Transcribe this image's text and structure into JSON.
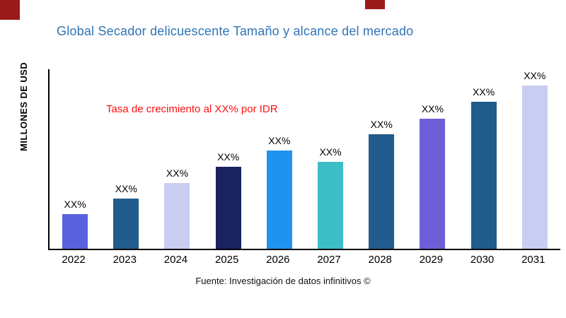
{
  "page": {
    "title_color": "#2E74B5",
    "annotation_color": "#FE1010",
    "decor_color": "#9B1B1B",
    "source": "Fuente: Investigación de datos infinitivos ©"
  },
  "chart_data": {
    "type": "bar",
    "title": "Global Secador delicuescente Tamaño y alcance del mercado",
    "xlabel": "",
    "ylabel": "MILLONES DE USD",
    "annotation": "Tasa de crecimiento al XX% por IDR",
    "categories": [
      "2022",
      "2023",
      "2024",
      "2025",
      "2026",
      "2027",
      "2028",
      "2029",
      "2030",
      "2031"
    ],
    "values": [
      49,
      71,
      93,
      116,
      140,
      123,
      163,
      185,
      209,
      232
    ],
    "value_labels": [
      "XX%",
      "XX%",
      "XX%",
      "XX%",
      "XX%",
      "XX%",
      "XX%",
      "XX%",
      "XX%",
      "XX%"
    ],
    "bar_colors": [
      "#5A61DE",
      "#215C8C",
      "#C9CDF2",
      "#1A2360",
      "#2093F0",
      "#3DBEC6",
      "#215C8C",
      "#6E5FD9",
      "#1F5C8C",
      "#C9CDF2"
    ],
    "ylim": [
      0,
      255
    ],
    "grid": false,
    "legend": false
  }
}
